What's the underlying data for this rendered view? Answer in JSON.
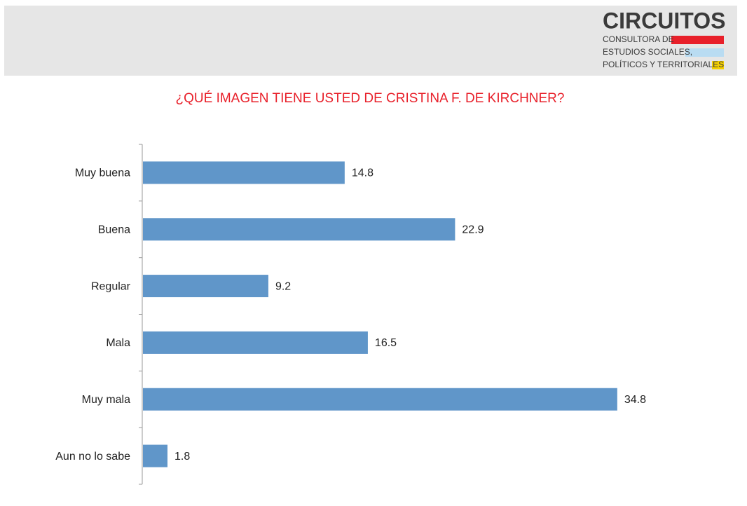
{
  "header": {
    "brand": "CIRCUITOS",
    "lines": [
      "CONSULTORA DE",
      "ESTUDIOS SOCIALES,",
      "POLÍTICOS Y TERRITORIALES"
    ]
  },
  "chart_data": {
    "type": "bar",
    "orientation": "horizontal",
    "title": "¿QUÉ IMAGEN TIENE USTED DE CRISTINA F. DE KIRCHNER?",
    "categories": [
      "Muy buena",
      "Buena",
      "Regular",
      "Mala",
      "Muy mala",
      "Aun no lo sabe"
    ],
    "values": [
      14.8,
      22.9,
      9.2,
      16.5,
      34.8,
      1.8
    ],
    "color": "#6096c9",
    "xlim": [
      0,
      40
    ]
  }
}
